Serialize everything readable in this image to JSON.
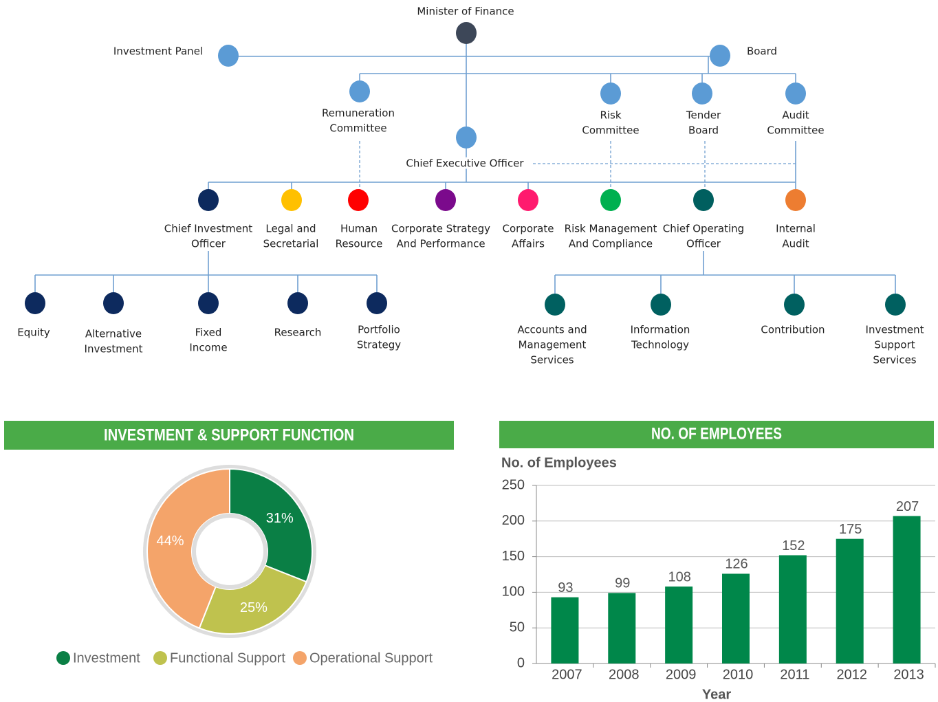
{
  "org_chart": {
    "nodes": [
      {
        "label": [
          "Minister of Finance"
        ],
        "color": "#3d4758"
      },
      {
        "label": [
          "Investment Panel"
        ],
        "color": "#5b9bd5"
      },
      {
        "label": [
          "Board"
        ],
        "color": "#5b9bd5"
      },
      {
        "label": [
          "Remuneration",
          "Committee"
        ],
        "color": "#5b9bd5"
      },
      {
        "label": [
          "Risk",
          "Committee"
        ],
        "color": "#5b9bd5"
      },
      {
        "label": [
          "Tender",
          "Board"
        ],
        "color": "#5b9bd5"
      },
      {
        "label": [
          "Audit",
          "Committee"
        ],
        "color": "#5b9bd5"
      },
      {
        "label": [
          "Chief Executive Officer"
        ],
        "color": "#5b9bd5"
      },
      {
        "label": [
          "Chief Investment",
          "Officer"
        ],
        "color": "#0d2a5e"
      },
      {
        "label": [
          "Legal and",
          "Secretarial"
        ],
        "color": "#ffc000"
      },
      {
        "label": [
          "Human",
          "Resource"
        ],
        "color": "#ff0000"
      },
      {
        "label": [
          "Corporate Strategy",
          "And Performance"
        ],
        "color": "#7b0a8c"
      },
      {
        "label": [
          "Corporate",
          "Affairs"
        ],
        "color": "#ff1a6e"
      },
      {
        "label": [
          "Risk Management",
          "And Compliance"
        ],
        "color": "#00b050"
      },
      {
        "label": [
          "Chief Operating",
          "Officer"
        ],
        "color": "#005f5f"
      },
      {
        "label": [
          "Internal",
          "Audit"
        ],
        "color": "#ed7d31"
      },
      {
        "label": [
          "Equity"
        ],
        "color": "#0d2a5e"
      },
      {
        "label": [
          "Alternative",
          "Investment"
        ],
        "color": "#0d2a5e"
      },
      {
        "label": [
          "Fixed",
          "Income"
        ],
        "color": "#0d2a5e"
      },
      {
        "label": [
          "Research"
        ],
        "color": "#0d2a5e"
      },
      {
        "label": [
          "Portfolio",
          "Strategy"
        ],
        "color": "#0d2a5e"
      },
      {
        "label": [
          "Accounts and",
          "Management",
          "Services"
        ],
        "color": "#006060"
      },
      {
        "label": [
          "Information",
          "Technology"
        ],
        "color": "#006060"
      },
      {
        "label": [
          "Contribution"
        ],
        "color": "#006060"
      },
      {
        "label": [
          "Investment",
          "Support",
          "Services"
        ],
        "color": "#006060"
      }
    ]
  },
  "chart_data": [
    {
      "type": "pie",
      "title": "INVESTMENT & SUPPORT FUNCTION",
      "categories": [
        "Investment",
        "Functional Support",
        "Operational Support"
      ],
      "values": [
        31,
        25,
        44
      ],
      "value_labels": [
        "31%",
        "25%",
        "44%"
      ],
      "colors": [
        "#0a7f45",
        "#bfc24e",
        "#f4a46a"
      ]
    },
    {
      "type": "bar",
      "title": "NO. OF EMPLOYEES",
      "y_label": "No. of Employees",
      "x_label": "Year",
      "categories": [
        "2007",
        "2008",
        "2009",
        "2010",
        "2011",
        "2012",
        "2013"
      ],
      "values": [
        93,
        99,
        108,
        126,
        152,
        175,
        207
      ],
      "color": "#00874a",
      "ylim": [
        0,
        250
      ],
      "yticks": [
        0,
        50,
        100,
        150,
        200,
        250
      ],
      "grid": true
    }
  ]
}
